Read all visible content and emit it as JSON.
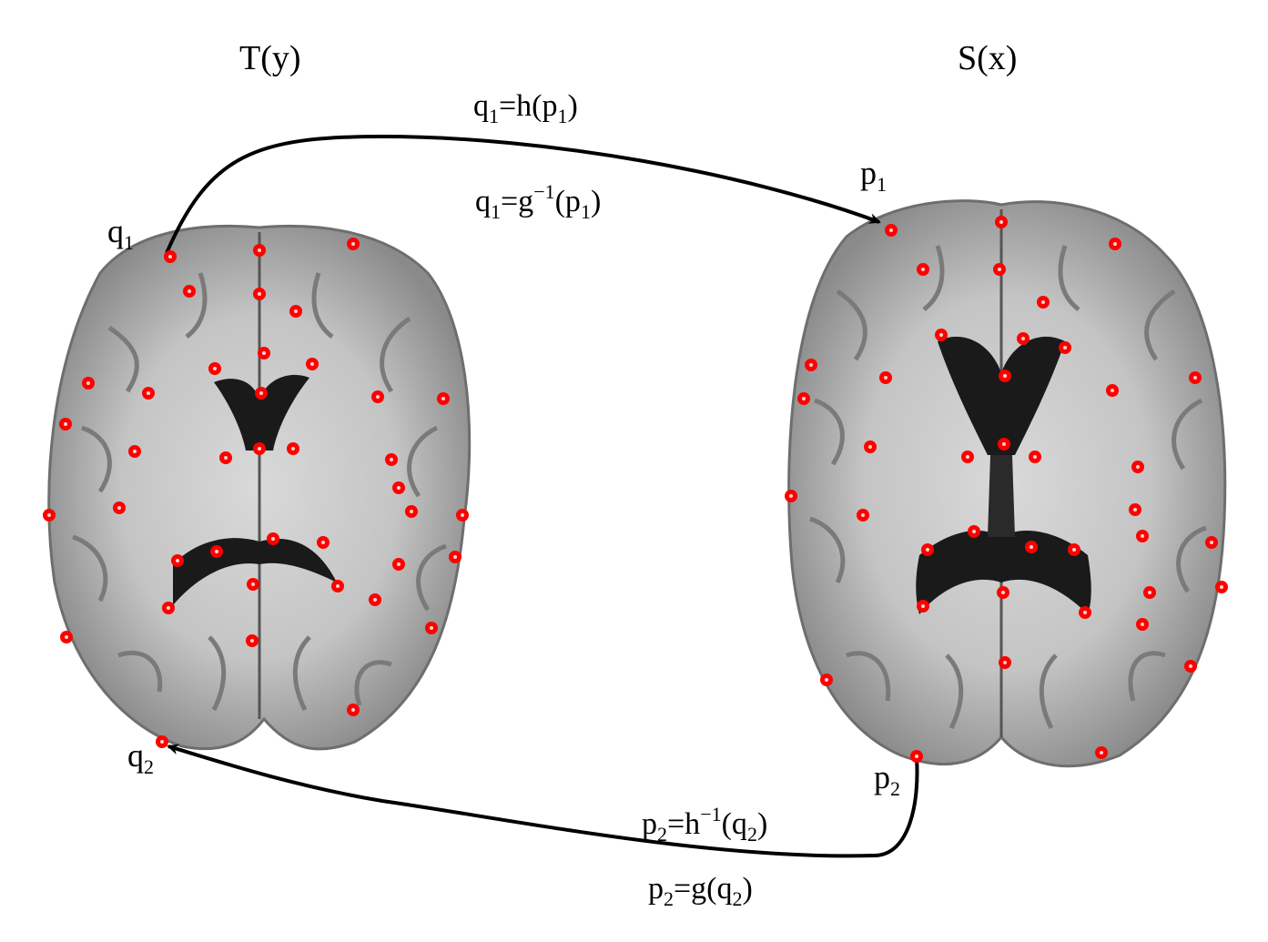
{
  "titles": {
    "template": "T(y)",
    "subject": "S(x)"
  },
  "points": {
    "q1": {
      "base": "q",
      "sub": "1"
    },
    "q2": {
      "base": "q",
      "sub": "2"
    },
    "p1": {
      "base": "p",
      "sub": "1"
    },
    "p2": {
      "base": "p",
      "sub": "2"
    }
  },
  "equations": {
    "eq_top_1": {
      "a": "q",
      "a_sub": "1",
      "rest1": "=h(p",
      "b_sub": "1",
      "rest2": ")"
    },
    "eq_top_2": {
      "a": "q",
      "a_sub": "1",
      "rest1": "=g",
      "sup": "−1",
      "rest2": "(p",
      "b_sub": "1",
      "rest3": ")"
    },
    "eq_bot_1": {
      "a": "p",
      "a_sub": "2",
      "rest1": "=h",
      "sup": "−1",
      "rest2": "(q",
      "b_sub": "2",
      "rest3": ")"
    },
    "eq_bot_2": {
      "a": "p",
      "a_sub": "2",
      "rest1": "=g(q",
      "b_sub": "2",
      "rest2": ")"
    }
  },
  "colors": {
    "landmark": "#ff0000",
    "arrow": "#000000",
    "brain_outline": "#ffffff"
  }
}
